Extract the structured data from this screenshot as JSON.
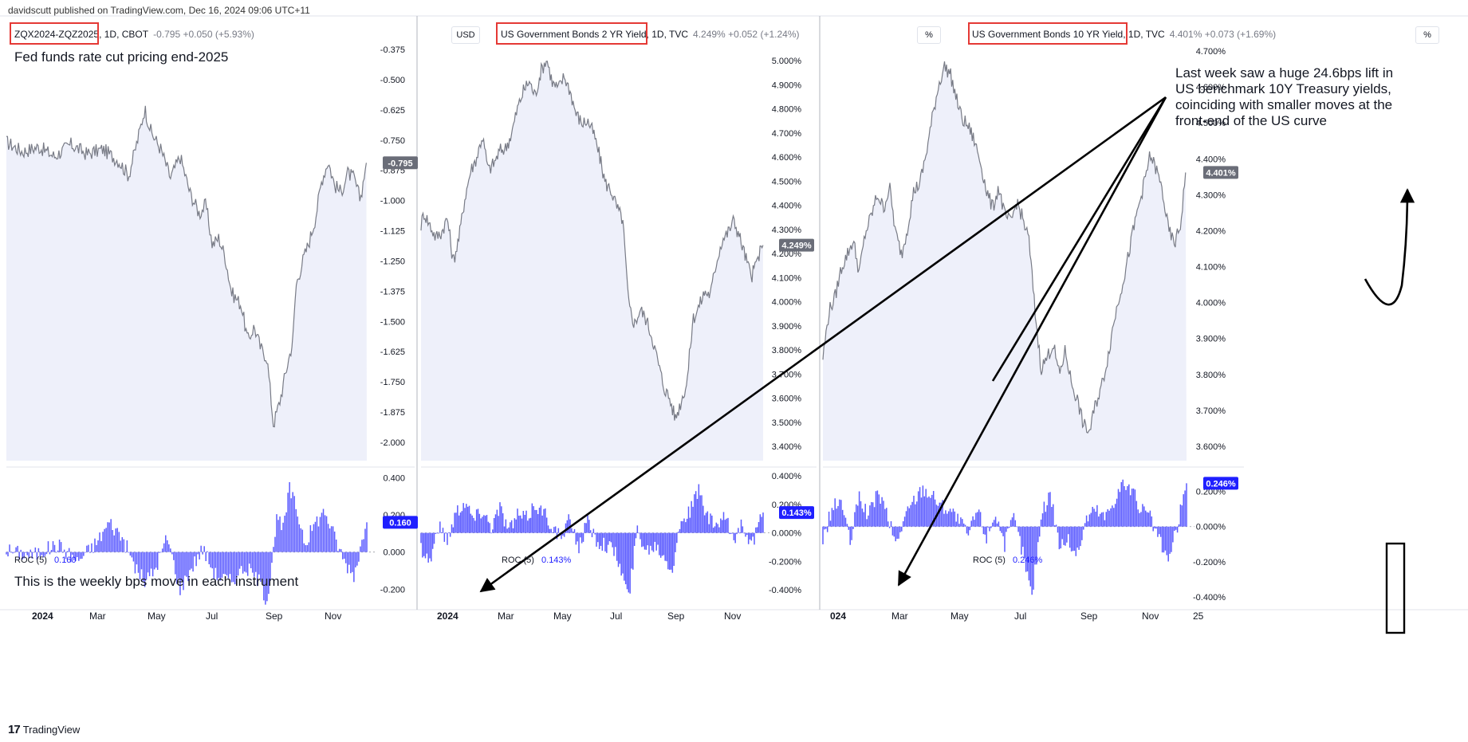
{
  "header": {
    "text": "davidscutt published on TradingView.com, Dec 16, 2024 09:06 UTC+11"
  },
  "footer": {
    "logo": "TradingView"
  },
  "annotations": {
    "panel1_title": "Fed funds rate cut pricing end-2025",
    "roc_note": "This is the weekly bps move in each instrument",
    "callout": [
      "Last week saw a huge 24.6bps lift in",
      "US benchmark 10Y Treasury yields,",
      "coinciding with smaller moves at the",
      "front-end of the US curve"
    ]
  },
  "colors": {
    "line": "#787b86",
    "area": "#e8ebf8",
    "bars": "#5b5bff",
    "highlight": "#e53935",
    "label_gray": "#6a6d78",
    "label_blue": "#1f1fff"
  },
  "chart_data": [
    {
      "type": "area",
      "symbol": "ZQX2024-ZQZ2025",
      "interval": "1D",
      "exchange": "CBOT",
      "last": "-0.795",
      "change": "+0.050",
      "change_pct": "(+5.93%)",
      "currency": "USD",
      "ylim": [
        -2.05,
        -0.3
      ],
      "y_ticks": [
        "-0.375",
        "-0.500",
        "-0.625",
        "-0.750",
        "-0.875",
        "-1.000",
        "-1.125",
        "-1.250",
        "-1.375",
        "-1.500",
        "-1.625",
        "-1.750",
        "-1.875",
        "-2.000"
      ],
      "x_ticks": [
        "2024",
        "Mar",
        "May",
        "Jul",
        "Sep",
        "Nov"
      ],
      "price_label": "-0.795",
      "points": [
        [
          0,
          -0.72
        ],
        [
          5,
          -0.76
        ],
        [
          10,
          -0.74
        ],
        [
          15,
          -0.78
        ],
        [
          20,
          -0.73
        ],
        [
          25,
          -0.77
        ],
        [
          30,
          -0.75
        ],
        [
          35,
          -0.8
        ],
        [
          38,
          -0.86
        ],
        [
          41,
          -0.7
        ],
        [
          43,
          -0.58
        ],
        [
          45,
          -0.68
        ],
        [
          48,
          -0.75
        ],
        [
          51,
          -0.87
        ],
        [
          54,
          -0.78
        ],
        [
          57,
          -0.93
        ],
        [
          60,
          -1.02
        ],
        [
          62,
          -0.98
        ],
        [
          64,
          -1.15
        ],
        [
          66,
          -1.12
        ],
        [
          68,
          -1.2
        ],
        [
          70,
          -1.35
        ],
        [
          73,
          -1.4
        ],
        [
          75,
          -1.55
        ],
        [
          77,
          -1.49
        ],
        [
          79,
          -1.58
        ],
        [
          81,
          -1.62
        ],
        [
          83,
          -1.9
        ],
        [
          85,
          -1.8
        ],
        [
          87,
          -1.67
        ],
        [
          89,
          -1.55
        ],
        [
          90,
          -1.32
        ],
        [
          92,
          -1.22
        ],
        [
          94,
          -1.14
        ],
        [
          96,
          -1.04
        ],
        [
          98,
          -0.88
        ],
        [
          100,
          -0.8
        ],
        [
          102,
          -0.9
        ],
        [
          104,
          -0.93
        ],
        [
          106,
          -0.85
        ],
        [
          108,
          -0.87
        ],
        [
          110,
          -0.96
        ],
        [
          112,
          -0.795
        ]
      ],
      "roc": {
        "label": "ROC (5)",
        "value": "0.160",
        "ylim": [
          -0.28,
          0.44
        ],
        "y_ticks": [
          "0.400",
          "0.200",
          "0.000",
          "-0.200"
        ],
        "knots": [
          [
            0,
            0.01
          ],
          [
            8,
            -0.02
          ],
          [
            16,
            0.04
          ],
          [
            22,
            -0.05
          ],
          [
            28,
            0.05
          ],
          [
            32,
            0.16
          ],
          [
            36,
            0.08
          ],
          [
            40,
            -0.08
          ],
          [
            43,
            -0.16
          ],
          [
            46,
            -0.1
          ],
          [
            50,
            0.08
          ],
          [
            54,
            -0.2
          ],
          [
            57,
            -0.1
          ],
          [
            61,
            0.02
          ],
          [
            65,
            -0.12
          ],
          [
            70,
            -0.16
          ],
          [
            74,
            -0.08
          ],
          [
            78,
            -0.14
          ],
          [
            81,
            -0.26
          ],
          [
            84,
            0.18
          ],
          [
            86,
            0.12
          ],
          [
            88,
            0.34
          ],
          [
            90,
            0.24
          ],
          [
            93,
            0.05
          ],
          [
            96,
            0.16
          ],
          [
            99,
            0.22
          ],
          [
            102,
            0.08
          ],
          [
            105,
            -0.05
          ],
          [
            108,
            -0.12
          ],
          [
            110,
            0.02
          ],
          [
            112,
            0.16
          ]
        ]
      }
    },
    {
      "type": "area",
      "symbol": "US Government Bonds 2 YR Yield",
      "interval": "1D",
      "exchange": "TVC",
      "last": "4.249%",
      "change": "+0.052",
      "change_pct": "(+1.24%)",
      "currency": "%",
      "ylim": [
        3.38,
        5.07
      ],
      "y_ticks": [
        "5.000%",
        "4.900%",
        "4.800%",
        "4.700%",
        "4.600%",
        "4.500%",
        "4.400%",
        "4.300%",
        "4.200%",
        "4.100%",
        "4.000%",
        "3.900%",
        "3.800%",
        "3.700%",
        "3.600%",
        "3.500%",
        "3.400%"
      ],
      "x_ticks": [
        "2024",
        "Mar",
        "May",
        "Jul",
        "Sep",
        "Nov"
      ],
      "price_label": "4.249%",
      "points": [
        [
          0,
          4.33
        ],
        [
          1,
          4.38
        ],
        [
          3,
          4.33
        ],
        [
          5,
          4.28
        ],
        [
          7,
          4.3
        ],
        [
          9,
          4.36
        ],
        [
          11,
          4.18
        ],
        [
          13,
          4.28
        ],
        [
          15,
          4.44
        ],
        [
          17,
          4.55
        ],
        [
          19,
          4.6
        ],
        [
          21,
          4.69
        ],
        [
          23,
          4.55
        ],
        [
          25,
          4.58
        ],
        [
          27,
          4.63
        ],
        [
          29,
          4.64
        ],
        [
          31,
          4.7
        ],
        [
          33,
          4.8
        ],
        [
          35,
          4.87
        ],
        [
          37,
          4.91
        ],
        [
          39,
          4.85
        ],
        [
          41,
          4.95
        ],
        [
          43,
          5.0
        ],
        [
          45,
          4.9
        ],
        [
          47,
          4.88
        ],
        [
          49,
          4.93
        ],
        [
          51,
          4.87
        ],
        [
          53,
          4.78
        ],
        [
          55,
          4.74
        ],
        [
          57,
          4.75
        ],
        [
          59,
          4.7
        ],
        [
          61,
          4.61
        ],
        [
          63,
          4.5
        ],
        [
          65,
          4.47
        ],
        [
          67,
          4.4
        ],
        [
          69,
          4.35
        ],
        [
          71,
          4.01
        ],
        [
          73,
          3.93
        ],
        [
          75,
          3.99
        ],
        [
          77,
          3.95
        ],
        [
          79,
          3.88
        ],
        [
          81,
          3.78
        ],
        [
          83,
          3.68
        ],
        [
          85,
          3.63
        ],
        [
          87,
          3.55
        ],
        [
          89,
          3.62
        ],
        [
          91,
          3.7
        ],
        [
          93,
          3.95
        ],
        [
          95,
          4.0
        ],
        [
          97,
          4.06
        ],
        [
          99,
          4.05
        ],
        [
          101,
          4.18
        ],
        [
          103,
          4.27
        ],
        [
          105,
          4.3
        ],
        [
          107,
          4.35
        ],
        [
          109,
          4.28
        ],
        [
          111,
          4.2
        ],
        [
          113,
          4.12
        ],
        [
          115,
          4.19
        ],
        [
          117,
          4.25
        ]
      ],
      "roc": {
        "label": "ROC (5)",
        "value": "0.143%",
        "ylim": [
          -0.5,
          0.44
        ],
        "y_ticks": [
          "0.400%",
          "0.200%",
          "0.000%",
          "-0.200%",
          "-0.400%"
        ],
        "knots": [
          [
            0,
            -0.1
          ],
          [
            3,
            -0.2
          ],
          [
            6,
            0.05
          ],
          [
            9,
            -0.05
          ],
          [
            12,
            0.15
          ],
          [
            15,
            0.22
          ],
          [
            18,
            0.1
          ],
          [
            21,
            0.16
          ],
          [
            24,
            0.05
          ],
          [
            27,
            0.18
          ],
          [
            30,
            0.02
          ],
          [
            33,
            0.12
          ],
          [
            36,
            0.1
          ],
          [
            39,
            0.2
          ],
          [
            42,
            0.14
          ],
          [
            45,
            0.05
          ],
          [
            48,
            -0.05
          ],
          [
            51,
            0.1
          ],
          [
            54,
            -0.1
          ],
          [
            57,
            0.08
          ],
          [
            60,
            -0.05
          ],
          [
            63,
            -0.08
          ],
          [
            66,
            -0.12
          ],
          [
            69,
            -0.3
          ],
          [
            71,
            -0.46
          ],
          [
            74,
            0.03
          ],
          [
            77,
            -0.12
          ],
          [
            80,
            -0.08
          ],
          [
            83,
            -0.15
          ],
          [
            86,
            -0.25
          ],
          [
            89,
            0.1
          ],
          [
            92,
            0.15
          ],
          [
            95,
            0.3
          ],
          [
            98,
            0.1
          ],
          [
            101,
            0.05
          ],
          [
            104,
            0.1
          ],
          [
            107,
            -0.05
          ],
          [
            110,
            0.08
          ],
          [
            113,
            -0.1
          ],
          [
            117,
            0.143
          ]
        ]
      }
    },
    {
      "type": "area",
      "symbol": "US Government Bonds 10 YR Yield",
      "interval": "1D",
      "exchange": "TVC",
      "last": "4.401%",
      "change": "+0.073",
      "change_pct": "(+1.69%)",
      "currency": "%",
      "ylim": [
        3.56,
        4.74
      ],
      "y_ticks": [
        "4.700%",
        "4.600%",
        "4.500%",
        "4.400%",
        "4.300%",
        "4.200%",
        "4.100%",
        "4.000%",
        "3.900%",
        "3.800%",
        "3.700%",
        "3.600%"
      ],
      "x_ticks": [
        "024",
        "Mar",
        "May",
        "Jul",
        "Sep",
        "Nov",
        "25"
      ],
      "price_label": "4.401%",
      "points": [
        [
          0,
          3.85
        ],
        [
          2,
          3.98
        ],
        [
          4,
          4.02
        ],
        [
          6,
          4.1
        ],
        [
          8,
          4.14
        ],
        [
          10,
          4.18
        ],
        [
          12,
          4.09
        ],
        [
          14,
          4.2
        ],
        [
          16,
          4.25
        ],
        [
          18,
          4.31
        ],
        [
          20,
          4.27
        ],
        [
          22,
          4.33
        ],
        [
          24,
          4.2
        ],
        [
          26,
          4.14
        ],
        [
          28,
          4.22
        ],
        [
          30,
          4.32
        ],
        [
          32,
          4.34
        ],
        [
          34,
          4.42
        ],
        [
          36,
          4.52
        ],
        [
          38,
          4.61
        ],
        [
          40,
          4.67
        ],
        [
          42,
          4.65
        ],
        [
          44,
          4.58
        ],
        [
          46,
          4.52
        ],
        [
          48,
          4.5
        ],
        [
          50,
          4.46
        ],
        [
          52,
          4.4
        ],
        [
          54,
          4.32
        ],
        [
          56,
          4.27
        ],
        [
          58,
          4.33
        ],
        [
          60,
          4.25
        ],
        [
          62,
          4.23
        ],
        [
          64,
          4.29
        ],
        [
          66,
          4.24
        ],
        [
          68,
          4.18
        ],
        [
          70,
          3.98
        ],
        [
          72,
          3.82
        ],
        [
          74,
          3.85
        ],
        [
          76,
          3.89
        ],
        [
          78,
          3.8
        ],
        [
          80,
          3.87
        ],
        [
          82,
          3.78
        ],
        [
          84,
          3.73
        ],
        [
          86,
          3.66
        ],
        [
          88,
          3.64
        ],
        [
          90,
          3.72
        ],
        [
          92,
          3.77
        ],
        [
          94,
          3.85
        ],
        [
          96,
          3.95
        ],
        [
          98,
          4.03
        ],
        [
          100,
          4.1
        ],
        [
          102,
          4.19
        ],
        [
          104,
          4.27
        ],
        [
          106,
          4.34
        ],
        [
          108,
          4.42
        ],
        [
          110,
          4.38
        ],
        [
          112,
          4.32
        ],
        [
          114,
          4.21
        ],
        [
          116,
          4.17
        ],
        [
          118,
          4.22
        ],
        [
          120,
          4.4
        ]
      ],
      "roc": {
        "label": "ROC (5)",
        "value": "0.246%",
        "ylim": [
          -0.44,
          0.32
        ],
        "y_ticks": [
          "0.200%",
          "0.000%",
          "-0.200%",
          "-0.400%"
        ],
        "knots": [
          [
            0,
            -0.08
          ],
          [
            3,
            0.1
          ],
          [
            6,
            0.15
          ],
          [
            9,
            -0.1
          ],
          [
            12,
            0.18
          ],
          [
            15,
            0.05
          ],
          [
            18,
            0.2
          ],
          [
            21,
            0.08
          ],
          [
            24,
            -0.1
          ],
          [
            27,
            0.05
          ],
          [
            30,
            0.15
          ],
          [
            33,
            0.22
          ],
          [
            36,
            0.18
          ],
          [
            39,
            0.12
          ],
          [
            42,
            0.1
          ],
          [
            45,
            0.03
          ],
          [
            48,
            -0.05
          ],
          [
            51,
            0.1
          ],
          [
            54,
            -0.06
          ],
          [
            57,
            0.08
          ],
          [
            60,
            -0.1
          ],
          [
            63,
            0.05
          ],
          [
            66,
            -0.15
          ],
          [
            69,
            -0.4
          ],
          [
            72,
            0.05
          ],
          [
            75,
            0.2
          ],
          [
            78,
            -0.1
          ],
          [
            81,
            -0.08
          ],
          [
            84,
            -0.16
          ],
          [
            87,
            0.05
          ],
          [
            90,
            0.1
          ],
          [
            93,
            0.05
          ],
          [
            96,
            0.15
          ],
          [
            99,
            0.25
          ],
          [
            102,
            0.2
          ],
          [
            105,
            0.1
          ],
          [
            108,
            0.05
          ],
          [
            111,
            -0.08
          ],
          [
            114,
            -0.2
          ],
          [
            117,
            0.0
          ],
          [
            120,
            0.246
          ]
        ]
      }
    }
  ]
}
